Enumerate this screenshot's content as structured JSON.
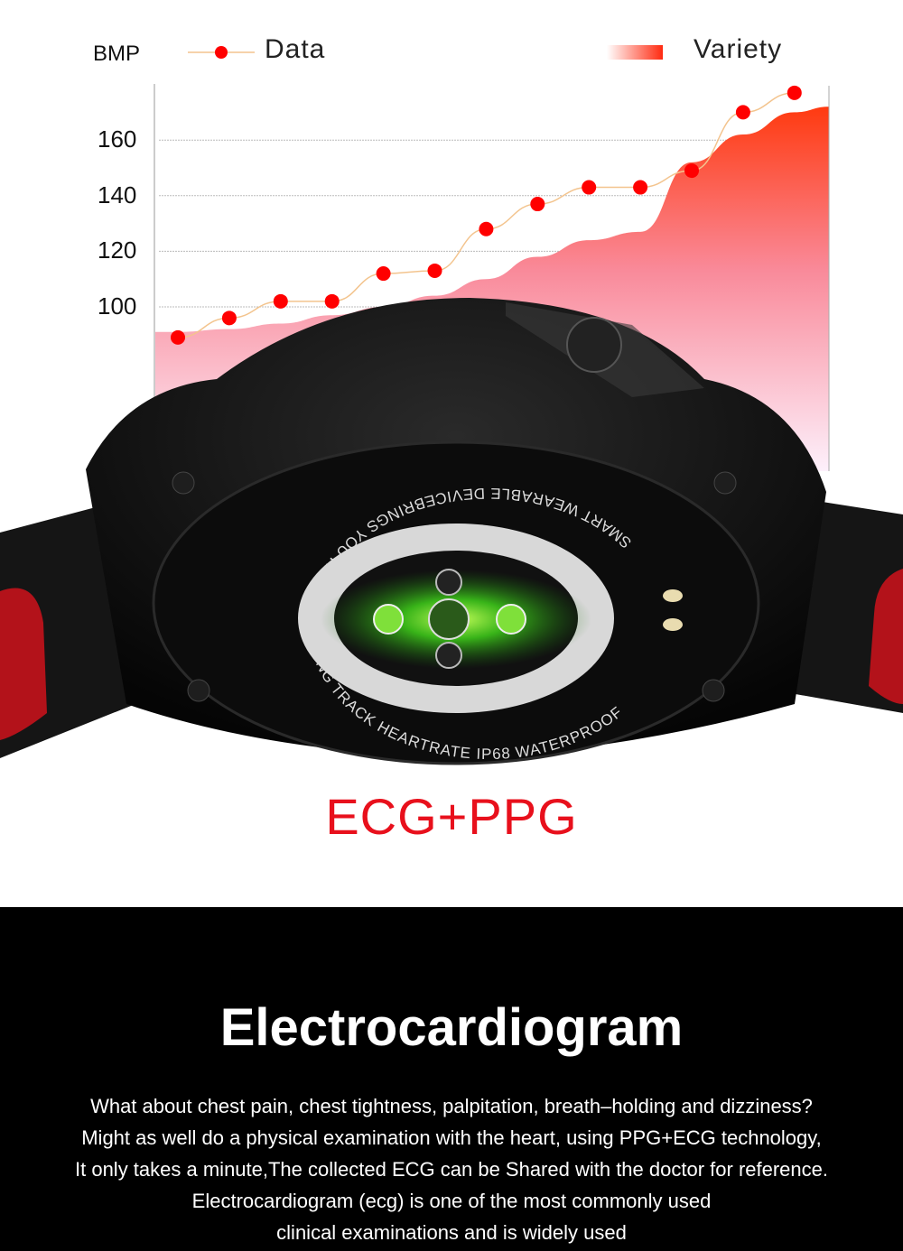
{
  "legend": {
    "ylabel": "BMP",
    "data_label": "Data",
    "variety_label": "Variety"
  },
  "chart_data": {
    "type": "line",
    "ylabel": "BMP",
    "yticks": [
      100,
      120,
      140,
      160
    ],
    "ylim": [
      60,
      180
    ],
    "grid": true,
    "legend_position": "top",
    "series": [
      {
        "name": "Data",
        "type": "line-markers",
        "color": "#ff0000",
        "values": [
          89,
          96,
          102,
          102,
          112,
          113,
          128,
          137,
          143,
          143,
          149,
          170,
          177
        ]
      },
      {
        "name": "Variety",
        "type": "area",
        "color": "#ff3a1a",
        "values": [
          91,
          92,
          94,
          97,
          100,
          104,
          110,
          118,
          124,
          127,
          152,
          162,
          170
        ]
      }
    ]
  },
  "watch": {
    "ring_text": "SMART WEARABLE DEVICEBRINGS YOU HEALTH MOVING TRACK HEARTRATE IP68 WATERPROOF"
  },
  "headline": "ECG+PPG",
  "section": {
    "title": "Electrocardiogram",
    "lines": [
      "What about chest pain, chest tightness, palpitation, breath–holding and dizziness?",
      "Might as well do a physical examination with the heart, using PPG+ECG technology,",
      "It only takes a minute,The collected ECG can be Shared with the doctor for reference.",
      "Electrocardiogram (ecg) is one of the most commonly used",
      "clinical examinations and is widely used"
    ]
  }
}
